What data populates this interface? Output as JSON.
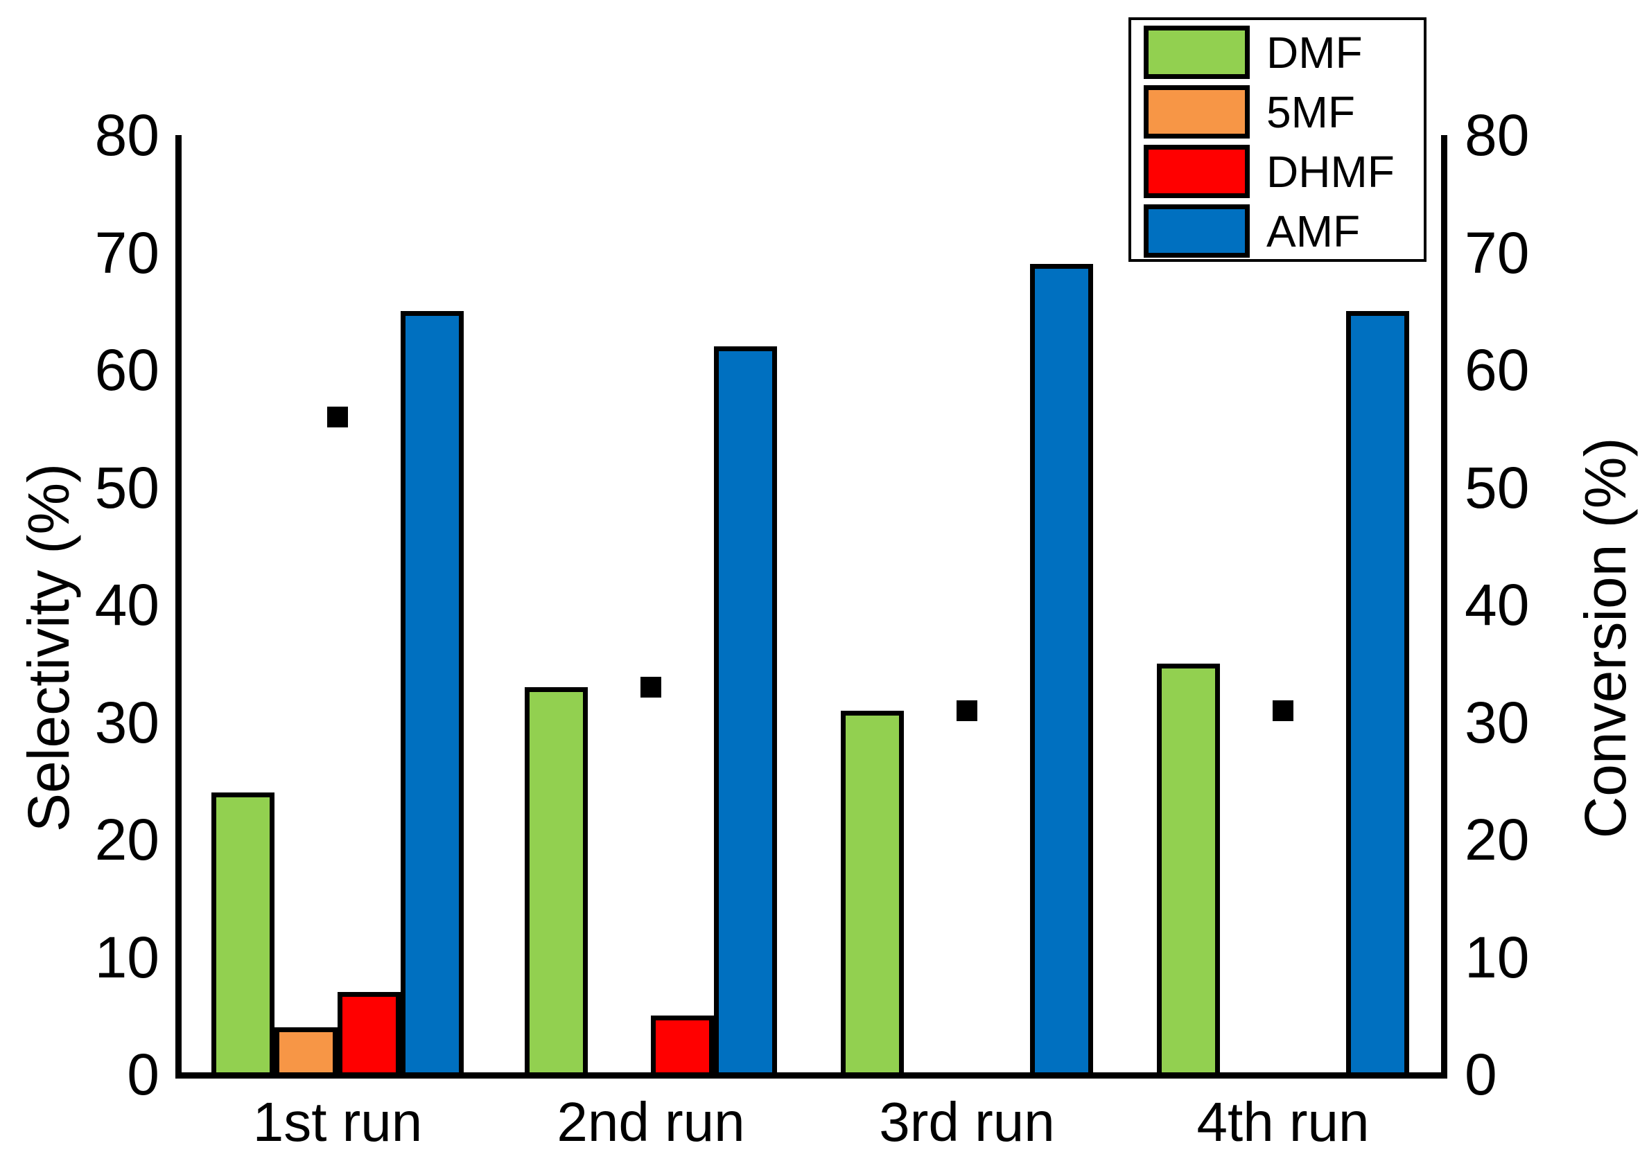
{
  "chart_data": {
    "type": "bar",
    "title": "",
    "categories": [
      "1st run",
      "2nd run",
      "3rd run",
      "4th run"
    ],
    "series": [
      {
        "name": "DMF",
        "color": "#92D050",
        "axis": "left",
        "values": [
          24,
          33,
          31,
          35
        ]
      },
      {
        "name": "5MF",
        "color": "#F79646",
        "axis": "left",
        "values": [
          4,
          0,
          0,
          0
        ]
      },
      {
        "name": "DHMF",
        "color": "#FF0000",
        "axis": "left",
        "values": [
          7,
          5,
          0,
          0
        ]
      },
      {
        "name": "AMF",
        "color": "#0070C0",
        "axis": "left",
        "values": [
          65,
          62,
          69,
          65
        ]
      }
    ],
    "scatter_series": {
      "name": "Conversion",
      "marker": "square",
      "color": "#000000",
      "axis": "right",
      "values": [
        56,
        33,
        31,
        31
      ]
    },
    "ylabel_left": "Selectivity (%)",
    "ylabel_right": "Conversion (%)",
    "xlabel": "",
    "ylim": [
      0,
      80
    ],
    "yticks": [
      0,
      10,
      20,
      30,
      40,
      50,
      60,
      70,
      80
    ],
    "grid": false,
    "legend_position": "top-right"
  },
  "legend": {
    "items": [
      {
        "label": "DMF",
        "color": "#92D050"
      },
      {
        "label": "5MF",
        "color": "#F79646"
      },
      {
        "label": "DHMF",
        "color": "#FF0000"
      },
      {
        "label": "AMF",
        "color": "#0070C0"
      }
    ]
  },
  "colors": {
    "axis": "#000000",
    "background": "#FFFFFF",
    "marker": "#000000"
  }
}
